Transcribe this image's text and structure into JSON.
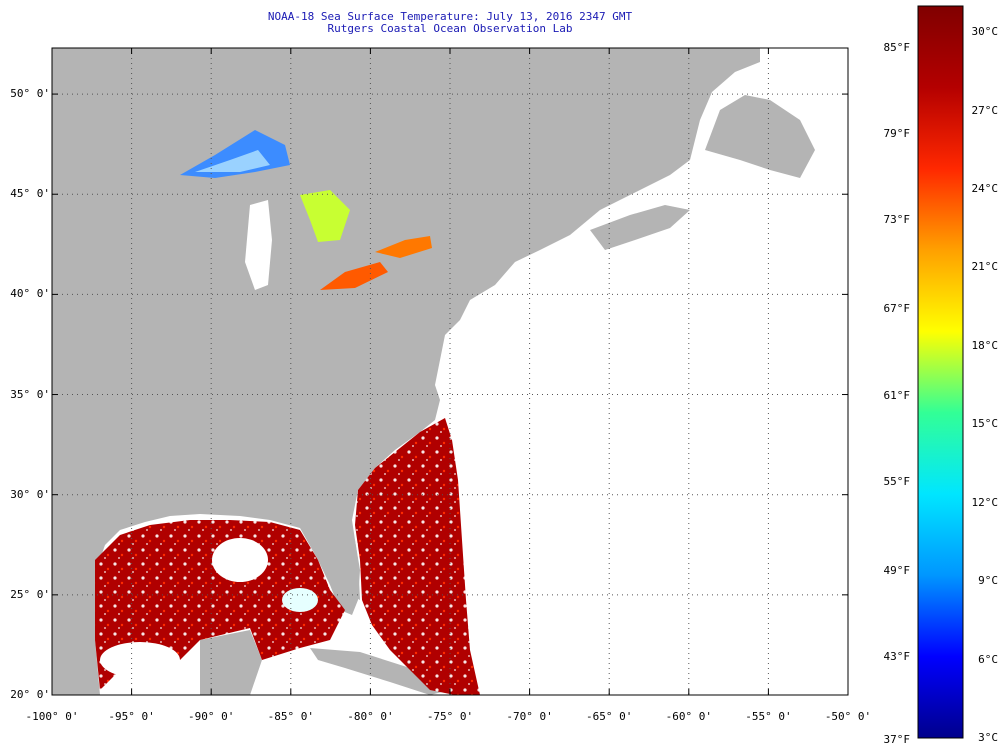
{
  "title": {
    "line1": "NOAA-18 Sea Surface Temperature:  July 13, 2016 2347 GMT",
    "line2": "Rutgers Coastal Ocean Observation Lab"
  },
  "map": {
    "lon_range": [
      -100,
      -50
    ],
    "lat_range": [
      20,
      52.3
    ],
    "grid": "dotted",
    "land_color": "#b4b4b4",
    "no_data_color": "#ffffff",
    "lat_labels": [
      {
        "lat": 50,
        "text": "50° 0'"
      },
      {
        "lat": 45,
        "text": "45° 0'"
      },
      {
        "lat": 40,
        "text": "40° 0'"
      },
      {
        "lat": 35,
        "text": "35° 0'"
      },
      {
        "lat": 30,
        "text": "30° 0'"
      },
      {
        "lat": 25,
        "text": "25° 0'"
      },
      {
        "lat": 20,
        "text": "20° 0'"
      }
    ],
    "lon_labels": [
      {
        "lon": -100,
        "text": "-100° 0'"
      },
      {
        "lon": -95,
        "text": "-95° 0'"
      },
      {
        "lon": -90,
        "text": "-90° 0'"
      },
      {
        "lon": -85,
        "text": "-85° 0'"
      },
      {
        "lon": -80,
        "text": "-80° 0'"
      },
      {
        "lon": -75,
        "text": "-75° 0'"
      },
      {
        "lon": -70,
        "text": "-70° 0'"
      },
      {
        "lon": -65,
        "text": "-65° 0'"
      },
      {
        "lon": -60,
        "text": "-60° 0'"
      },
      {
        "lon": -55,
        "text": "-55° 0'"
      },
      {
        "lon": -50,
        "text": "-50° 0'"
      }
    ]
  },
  "colorbar": {
    "min_c": 3,
    "max_c": 31,
    "colors": [
      "#00008c",
      "#0000ff",
      "#0096ff",
      "#00e6ff",
      "#32ff96",
      "#ffff00",
      "#ffa000",
      "#ff2800",
      "#b40000",
      "#800000"
    ],
    "fahrenheit_labels": [
      {
        "c": 29.4,
        "text": "85°F"
      },
      {
        "c": 26.1,
        "text": "79°F"
      },
      {
        "c": 22.8,
        "text": "73°F"
      },
      {
        "c": 19.4,
        "text": "67°F"
      },
      {
        "c": 16.1,
        "text": "61°F"
      },
      {
        "c": 12.8,
        "text": "55°F"
      },
      {
        "c": 9.4,
        "text": "49°F"
      },
      {
        "c": 6.1,
        "text": "43°F"
      },
      {
        "c": 2.8,
        "text": "37°F"
      }
    ],
    "celsius_labels": [
      {
        "c": 30,
        "text": "30°C"
      },
      {
        "c": 27,
        "text": "27°C"
      },
      {
        "c": 24,
        "text": "24°C"
      },
      {
        "c": 21,
        "text": "21°C"
      },
      {
        "c": 18,
        "text": "18°C"
      },
      {
        "c": 15,
        "text": "15°C"
      },
      {
        "c": 12,
        "text": "12°C"
      },
      {
        "c": 9,
        "text": "9°C"
      },
      {
        "c": 6,
        "text": "6°C"
      },
      {
        "c": 3,
        "text": "3°C"
      }
    ]
  }
}
